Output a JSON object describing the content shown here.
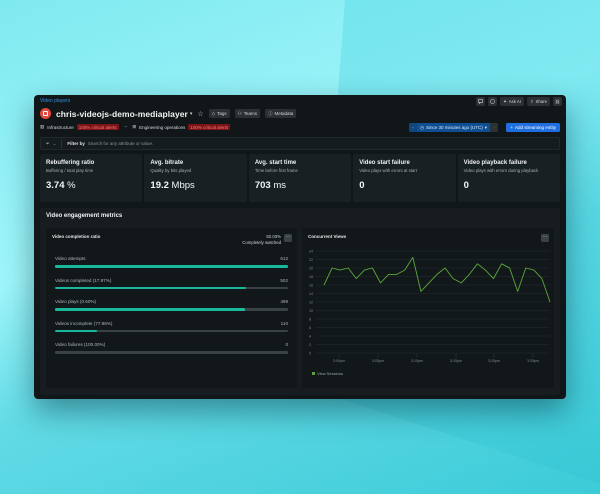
{
  "breadcrumb": "Video players",
  "entity": {
    "name": "chris-videojs-demo-mediaplayer",
    "icon": "video-player-icon",
    "tags": [
      {
        "label": "Tags",
        "icon": "tag-icon"
      },
      {
        "label": "Teams",
        "icon": "teams-icon"
      },
      {
        "label": "Metadata",
        "icon": "info-icon"
      }
    ]
  },
  "titlebar": {
    "feedback_icon": "feedback-icon",
    "help_icon": "help-icon",
    "ask_ai": "Ask AI",
    "share": "Share",
    "link_icon": "link-icon"
  },
  "alerts": [
    {
      "label": "Infrastructure",
      "status": "100% critical alerts",
      "icon": "building-icon"
    },
    {
      "label": "Engineering operations",
      "status": "100% critical alerts",
      "icon": "grid-icon"
    }
  ],
  "time_picker": {
    "label": "Since 30 minutes ago (UTC)"
  },
  "add_entity": "Add streaming entity",
  "filter": {
    "label": "Filter by",
    "placeholder": "Search for any attribute or value."
  },
  "kpis": [
    {
      "title": "Rebuffering ratio",
      "subtitle": "Buffering / total play time",
      "value": "3.74",
      "unit": "%"
    },
    {
      "title": "Avg. bitrate",
      "subtitle": "Quality by bits played",
      "value": "19.2",
      "unit": "Mbps"
    },
    {
      "title": "Avg. start time",
      "subtitle": "Time before first frame",
      "value": "703",
      "unit": "ms"
    },
    {
      "title": "Video start failure",
      "subtitle": "Video plays with errors at start",
      "value": "0",
      "unit": ""
    },
    {
      "title": "Video playback failure",
      "subtitle": "Video plays with errors during playback",
      "value": "0",
      "unit": ""
    }
  ],
  "engagement": {
    "title": "Video engagement metrics",
    "completion": {
      "title": "Video completion ratio",
      "ratio": "82.03%",
      "ratio_label": "Completely watched",
      "rows": [
        {
          "label": "Video attempts",
          "value": "612",
          "pct": 100
        },
        {
          "label": "Videos completed (17.97%)",
          "value": "502",
          "pct": 82
        },
        {
          "label": "Video plays (0.60%)",
          "value": "499",
          "pct": 81.5
        },
        {
          "label": "Videos incomplete (77.96%)",
          "value": "110",
          "pct": 18
        },
        {
          "label": "Video failures (100.00%)",
          "value": "0",
          "pct": 0
        }
      ]
    },
    "concurrent": {
      "title": "Concurrent Views",
      "legend": "View Sessions"
    }
  },
  "chart_data": {
    "type": "line",
    "title": "Concurrent Views",
    "xlabel": "",
    "ylabel": "",
    "ylim": [
      0,
      24
    ],
    "yticks": [
      0,
      2,
      4,
      6,
      8,
      10,
      12,
      14,
      16,
      18,
      20,
      22,
      24
    ],
    "xticks": [
      "3:00pm",
      "3:05pm",
      "3:10pm",
      "3:15pm",
      "3:20pm",
      "3:25pm"
    ],
    "grid": true,
    "legend_position": "bottom-left",
    "series": [
      {
        "name": "View Sessions",
        "color": "#5aa83b",
        "values": [
          16,
          20,
          19.5,
          20,
          17.5,
          19.5,
          20,
          16.5,
          18.5,
          18.5,
          19.5,
          22.5,
          14.5,
          16.5,
          18.5,
          20,
          17.5,
          16.5,
          18.5,
          21,
          19.5,
          17.5,
          21,
          20,
          14.5,
          20,
          19.5,
          17.5,
          12
        ]
      }
    ]
  },
  "colors": {
    "accent_blue": "#1f6fe0",
    "critical_red": "#7a1418",
    "bar_teal": "#19b79b",
    "line_green": "#5aa83b"
  }
}
